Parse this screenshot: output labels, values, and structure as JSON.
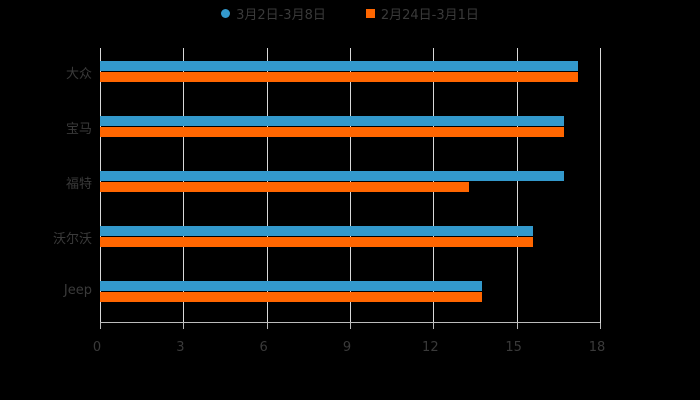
{
  "chart_data": {
    "type": "bar",
    "orientation": "horizontal",
    "categories": [
      "大众",
      "宝马",
      "福特",
      "沃尔沃",
      "Jeep"
    ],
    "series": [
      {
        "name": "3月2日-3月8日",
        "color": "#3399CC",
        "values": [
          17.2,
          16.7,
          16.7,
          15.6,
          13.75
        ]
      },
      {
        "name": "2月24日-3月1日",
        "color": "#FF6600",
        "values": [
          17.2,
          16.7,
          13.3,
          15.6,
          13.75
        ]
      }
    ],
    "xlim": [
      0,
      18
    ],
    "xticks": [
      "0",
      "3",
      "6",
      "9",
      "12",
      "15",
      "18"
    ],
    "grid": true,
    "legend_position": "top"
  },
  "legend": {
    "s0": "3月2日-3月8日",
    "s1": "2月24日-3月1日"
  }
}
